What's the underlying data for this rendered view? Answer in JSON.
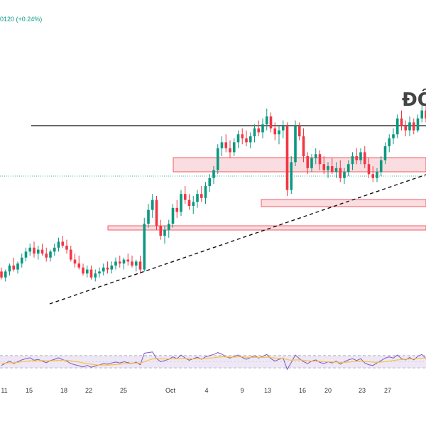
{
  "header": {
    "change_text": "0120 (+0.24%)"
  },
  "annotation": {
    "text": "ĐỒ"
  },
  "colors": {
    "up": "#089981",
    "down": "#f23645",
    "zone_fill": "#f8d7da",
    "zone_stroke": "#f23645",
    "rsi_line": "#7e57c2",
    "rsi_ma": "#fbc02d",
    "rsi_band": "#ede7f6",
    "price_line": "#089981"
  },
  "chart_data": [
    {
      "type": "candlestick",
      "title": "",
      "xlabel": "",
      "ylabel": "",
      "x_ticks": [
        "11",
        "15",
        "18",
        "22",
        "25",
        "Oct",
        "4",
        "9",
        "13",
        "16",
        "20",
        "23",
        "27"
      ],
      "ylim": [
        0,
        100
      ],
      "grid": false,
      "candles": [
        {
          "o": 17,
          "h": 19,
          "l": 13,
          "c": 14
        },
        {
          "o": 14,
          "h": 18,
          "l": 12,
          "c": 17
        },
        {
          "o": 17,
          "h": 21,
          "l": 15,
          "c": 20
        },
        {
          "o": 20,
          "h": 24,
          "l": 17,
          "c": 18
        },
        {
          "o": 18,
          "h": 22,
          "l": 16,
          "c": 21
        },
        {
          "o": 21,
          "h": 26,
          "l": 19,
          "c": 24
        },
        {
          "o": 24,
          "h": 29,
          "l": 22,
          "c": 27
        },
        {
          "o": 27,
          "h": 31,
          "l": 25,
          "c": 29
        },
        {
          "o": 29,
          "h": 32,
          "l": 24,
          "c": 26
        },
        {
          "o": 26,
          "h": 30,
          "l": 23,
          "c": 28
        },
        {
          "o": 28,
          "h": 31,
          "l": 25,
          "c": 26
        },
        {
          "o": 26,
          "h": 29,
          "l": 22,
          "c": 24
        },
        {
          "o": 24,
          "h": 28,
          "l": 22,
          "c": 27
        },
        {
          "o": 27,
          "h": 31,
          "l": 25,
          "c": 29
        },
        {
          "o": 29,
          "h": 34,
          "l": 27,
          "c": 32
        },
        {
          "o": 32,
          "h": 35,
          "l": 29,
          "c": 30
        },
        {
          "o": 30,
          "h": 33,
          "l": 26,
          "c": 28
        },
        {
          "o": 28,
          "h": 30,
          "l": 22,
          "c": 23
        },
        {
          "o": 23,
          "h": 26,
          "l": 19,
          "c": 21
        },
        {
          "o": 21,
          "h": 25,
          "l": 18,
          "c": 19
        },
        {
          "o": 19,
          "h": 21,
          "l": 15,
          "c": 16
        },
        {
          "o": 16,
          "h": 20,
          "l": 14,
          "c": 18
        },
        {
          "o": 18,
          "h": 20,
          "l": 13,
          "c": 14
        },
        {
          "o": 14,
          "h": 18,
          "l": 12,
          "c": 16
        },
        {
          "o": 16,
          "h": 19,
          "l": 14,
          "c": 17
        },
        {
          "o": 17,
          "h": 21,
          "l": 15,
          "c": 19
        },
        {
          "o": 19,
          "h": 22,
          "l": 16,
          "c": 18
        },
        {
          "o": 18,
          "h": 22,
          "l": 16,
          "c": 20
        },
        {
          "o": 20,
          "h": 24,
          "l": 18,
          "c": 22
        },
        {
          "o": 22,
          "h": 25,
          "l": 19,
          "c": 21
        },
        {
          "o": 21,
          "h": 24,
          "l": 18,
          "c": 23
        },
        {
          "o": 23,
          "h": 26,
          "l": 20,
          "c": 22
        },
        {
          "o": 22,
          "h": 25,
          "l": 19,
          "c": 20
        },
        {
          "o": 20,
          "h": 23,
          "l": 17,
          "c": 22
        },
        {
          "o": 22,
          "h": 25,
          "l": 16,
          "c": 18
        },
        {
          "o": 18,
          "h": 44,
          "l": 17,
          "c": 41
        },
        {
          "o": 41,
          "h": 51,
          "l": 39,
          "c": 48
        },
        {
          "o": 48,
          "h": 56,
          "l": 44,
          "c": 53
        },
        {
          "o": 53,
          "h": 55,
          "l": 38,
          "c": 40
        },
        {
          "o": 40,
          "h": 43,
          "l": 33,
          "c": 35
        },
        {
          "o": 35,
          "h": 40,
          "l": 31,
          "c": 38
        },
        {
          "o": 38,
          "h": 43,
          "l": 34,
          "c": 41
        },
        {
          "o": 41,
          "h": 51,
          "l": 39,
          "c": 49
        },
        {
          "o": 49,
          "h": 53,
          "l": 44,
          "c": 47
        },
        {
          "o": 47,
          "h": 58,
          "l": 45,
          "c": 56
        },
        {
          "o": 56,
          "h": 60,
          "l": 51,
          "c": 53
        },
        {
          "o": 53,
          "h": 56,
          "l": 48,
          "c": 50
        },
        {
          "o": 50,
          "h": 55,
          "l": 46,
          "c": 52
        },
        {
          "o": 52,
          "h": 58,
          "l": 49,
          "c": 56
        },
        {
          "o": 56,
          "h": 60,
          "l": 52,
          "c": 54
        },
        {
          "o": 54,
          "h": 62,
          "l": 51,
          "c": 60
        },
        {
          "o": 60,
          "h": 66,
          "l": 57,
          "c": 64
        },
        {
          "o": 64,
          "h": 70,
          "l": 61,
          "c": 68
        },
        {
          "o": 68,
          "h": 81,
          "l": 66,
          "c": 79
        },
        {
          "o": 79,
          "h": 85,
          "l": 75,
          "c": 82
        },
        {
          "o": 82,
          "h": 86,
          "l": 77,
          "c": 79
        },
        {
          "o": 79,
          "h": 83,
          "l": 74,
          "c": 77
        },
        {
          "o": 77,
          "h": 84,
          "l": 75,
          "c": 82
        },
        {
          "o": 82,
          "h": 88,
          "l": 79,
          "c": 86
        },
        {
          "o": 86,
          "h": 89,
          "l": 81,
          "c": 84
        },
        {
          "o": 84,
          "h": 88,
          "l": 80,
          "c": 82
        },
        {
          "o": 82,
          "h": 87,
          "l": 79,
          "c": 85
        },
        {
          "o": 85,
          "h": 91,
          "l": 82,
          "c": 89
        },
        {
          "o": 89,
          "h": 93,
          "l": 85,
          "c": 87
        },
        {
          "o": 87,
          "h": 94,
          "l": 84,
          "c": 91
        },
        {
          "o": 91,
          "h": 99,
          "l": 88,
          "c": 95
        },
        {
          "o": 95,
          "h": 97,
          "l": 87,
          "c": 89
        },
        {
          "o": 89,
          "h": 92,
          "l": 83,
          "c": 86
        },
        {
          "o": 86,
          "h": 90,
          "l": 81,
          "c": 88
        },
        {
          "o": 88,
          "h": 93,
          "l": 84,
          "c": 90
        },
        {
          "o": 90,
          "h": 92,
          "l": 55,
          "c": 58
        },
        {
          "o": 58,
          "h": 75,
          "l": 56,
          "c": 72
        },
        {
          "o": 72,
          "h": 93,
          "l": 70,
          "c": 90
        },
        {
          "o": 90,
          "h": 92,
          "l": 83,
          "c": 85
        },
        {
          "o": 85,
          "h": 89,
          "l": 72,
          "c": 75
        },
        {
          "o": 75,
          "h": 77,
          "l": 66,
          "c": 69
        },
        {
          "o": 69,
          "h": 76,
          "l": 67,
          "c": 74
        },
        {
          "o": 74,
          "h": 79,
          "l": 71,
          "c": 76
        },
        {
          "o": 76,
          "h": 78,
          "l": 68,
          "c": 71
        },
        {
          "o": 71,
          "h": 75,
          "l": 66,
          "c": 68
        },
        {
          "o": 68,
          "h": 72,
          "l": 64,
          "c": 70
        },
        {
          "o": 70,
          "h": 74,
          "l": 66,
          "c": 67
        },
        {
          "o": 67,
          "h": 72,
          "l": 64,
          "c": 69
        },
        {
          "o": 69,
          "h": 73,
          "l": 62,
          "c": 64
        },
        {
          "o": 64,
          "h": 69,
          "l": 61,
          "c": 67
        },
        {
          "o": 67,
          "h": 73,
          "l": 65,
          "c": 71
        },
        {
          "o": 71,
          "h": 77,
          "l": 68,
          "c": 75
        },
        {
          "o": 75,
          "h": 79,
          "l": 71,
          "c": 73
        },
        {
          "o": 73,
          "h": 79,
          "l": 71,
          "c": 77
        },
        {
          "o": 77,
          "h": 80,
          "l": 69,
          "c": 71
        },
        {
          "o": 71,
          "h": 74,
          "l": 64,
          "c": 66
        },
        {
          "o": 66,
          "h": 70,
          "l": 62,
          "c": 64
        },
        {
          "o": 64,
          "h": 69,
          "l": 62,
          "c": 67
        },
        {
          "o": 67,
          "h": 75,
          "l": 65,
          "c": 73
        },
        {
          "o": 73,
          "h": 82,
          "l": 71,
          "c": 80
        },
        {
          "o": 80,
          "h": 86,
          "l": 77,
          "c": 84
        },
        {
          "o": 84,
          "h": 89,
          "l": 81,
          "c": 86
        },
        {
          "o": 86,
          "h": 96,
          "l": 84,
          "c": 94
        },
        {
          "o": 94,
          "h": 98,
          "l": 88,
          "c": 90
        },
        {
          "o": 90,
          "h": 93,
          "l": 85,
          "c": 88
        },
        {
          "o": 88,
          "h": 95,
          "l": 85,
          "c": 92
        },
        {
          "o": 92,
          "h": 94,
          "l": 86,
          "c": 88
        },
        {
          "o": 88,
          "h": 96,
          "l": 87,
          "c": 94
        },
        {
          "o": 94,
          "h": 101,
          "l": 92,
          "c": 98
        },
        {
          "o": 98,
          "h": 100,
          "l": 92,
          "c": 94
        }
      ]
    },
    {
      "type": "line",
      "title": "",
      "ylim": [
        0,
        100
      ],
      "series": [
        {
          "role": "rsi",
          "values": [
            38,
            45,
            52,
            44,
            50,
            56,
            60,
            63,
            55,
            58,
            52,
            47,
            54,
            58,
            63,
            57,
            52,
            44,
            40,
            37,
            33,
            38,
            32,
            36,
            40,
            44,
            42,
            46,
            49,
            46,
            50,
            47,
            44,
            49,
            40,
            78,
            80,
            82,
            60,
            50,
            54,
            58,
            66,
            60,
            72,
            62,
            55,
            60,
            65,
            58,
            66,
            70,
            74,
            80,
            75,
            66,
            62,
            68,
            72,
            64,
            58,
            64,
            70,
            62,
            68,
            74,
            60,
            52,
            58,
            62,
            25,
            48,
            72,
            60,
            50,
            44,
            52,
            56,
            48,
            44,
            50,
            46,
            52,
            42,
            50,
            56,
            60,
            54,
            60,
            46,
            40,
            38,
            46,
            54,
            62,
            66,
            62,
            72,
            60,
            56,
            64,
            56,
            68,
            74,
            60
          ]
        },
        {
          "role": "rsi-ma",
          "values": [
            44,
            45,
            47,
            47,
            48,
            50,
            51,
            53,
            53,
            54,
            54,
            53,
            53,
            54,
            55,
            55,
            55,
            53,
            51,
            49,
            46,
            44,
            42,
            40,
            39,
            39,
            39,
            40,
            41,
            42,
            43,
            44,
            45,
            46,
            45,
            50,
            55,
            59,
            60,
            60,
            59,
            59,
            60,
            60,
            61,
            61,
            60,
            59,
            60,
            60,
            61,
            62,
            63,
            65,
            66,
            66,
            65,
            65,
            66,
            66,
            65,
            64,
            64,
            64,
            64,
            65,
            64,
            62,
            61,
            61,
            57,
            55,
            56,
            56,
            55,
            53,
            52,
            52,
            51,
            50,
            50,
            49,
            49,
            48,
            48,
            49,
            50,
            51,
            52,
            51,
            50,
            49,
            48,
            49,
            50,
            52,
            54,
            56,
            57,
            58,
            59,
            59,
            61,
            62,
            62
          ]
        }
      ],
      "bands": {
        "upper": 70,
        "lower": 30,
        "mid": 50
      }
    }
  ]
}
